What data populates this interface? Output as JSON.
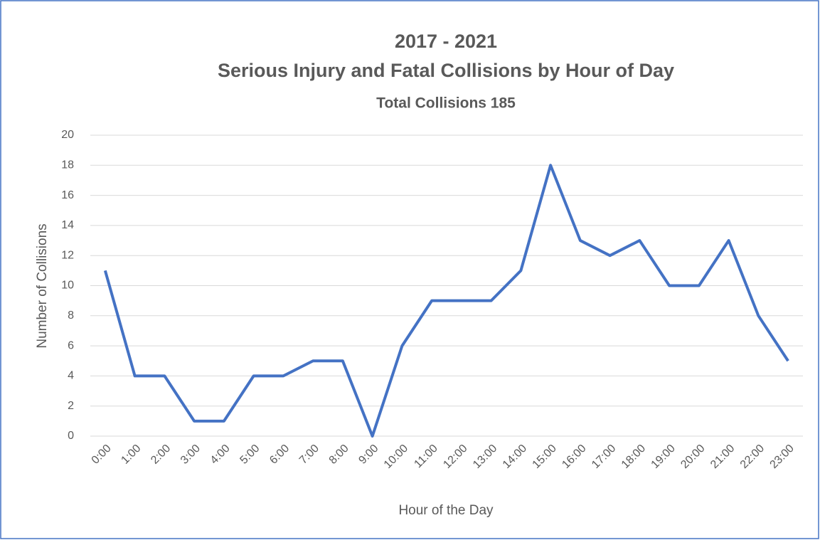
{
  "chart_data": {
    "type": "line",
    "title": [
      "2017 - 2021",
      "Serious Injury and Fatal Collisions by Hour of Day"
    ],
    "subtitle": "Total Collisions 185",
    "x_label": "Hour of the Day",
    "y_label": "Number of Collisions",
    "categories": [
      "0:00",
      "1:00",
      "2:00",
      "3:00",
      "4:00",
      "5:00",
      "6:00",
      "7:00",
      "8:00",
      "9:00",
      "10:00",
      "11:00",
      "12:00",
      "13:00",
      "14:00",
      "15:00",
      "16:00",
      "17:00",
      "18:00",
      "19:00",
      "20:00",
      "21:00",
      "22:00",
      "23:00"
    ],
    "series": [
      {
        "name": "Collisions",
        "color": "#4472c4",
        "values": [
          11,
          4,
          4,
          1,
          1,
          4,
          4,
          5,
          5,
          0,
          6,
          9,
          9,
          9,
          11,
          18,
          13,
          12,
          13,
          10,
          10,
          13,
          8,
          5
        ]
      }
    ],
    "ylim": [
      0,
      20
    ],
    "yticks": [
      0,
      2,
      4,
      6,
      8,
      10,
      12,
      14,
      16,
      18,
      20
    ],
    "grid": true,
    "legend": false
  }
}
